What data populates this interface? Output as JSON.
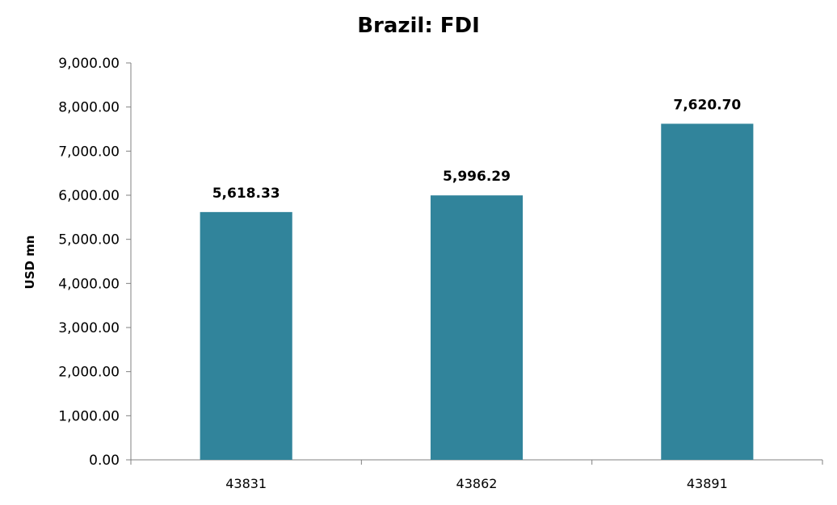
{
  "chart_data": {
    "type": "bar",
    "title": "Brazil: FDI",
    "xlabel": "",
    "ylabel": "USD mn",
    "categories": [
      "43831",
      "43862",
      "43891"
    ],
    "values": [
      5618.33,
      5996.29,
      7620.7
    ],
    "data_labels": [
      "5,618.33",
      "5,996.29",
      "7,620.70"
    ],
    "ylim": [
      0,
      9000
    ],
    "yticks": [
      0,
      1000,
      2000,
      3000,
      4000,
      5000,
      6000,
      7000,
      8000,
      9000
    ],
    "ytick_labels": [
      "0.00",
      "1,000.00",
      "2,000.00",
      "3,000.00",
      "4,000.00",
      "5,000.00",
      "6,000.00",
      "7,000.00",
      "8,000.00",
      "9,000.00"
    ],
    "grid": false,
    "legend": "none",
    "bar_color": "#31849b"
  }
}
